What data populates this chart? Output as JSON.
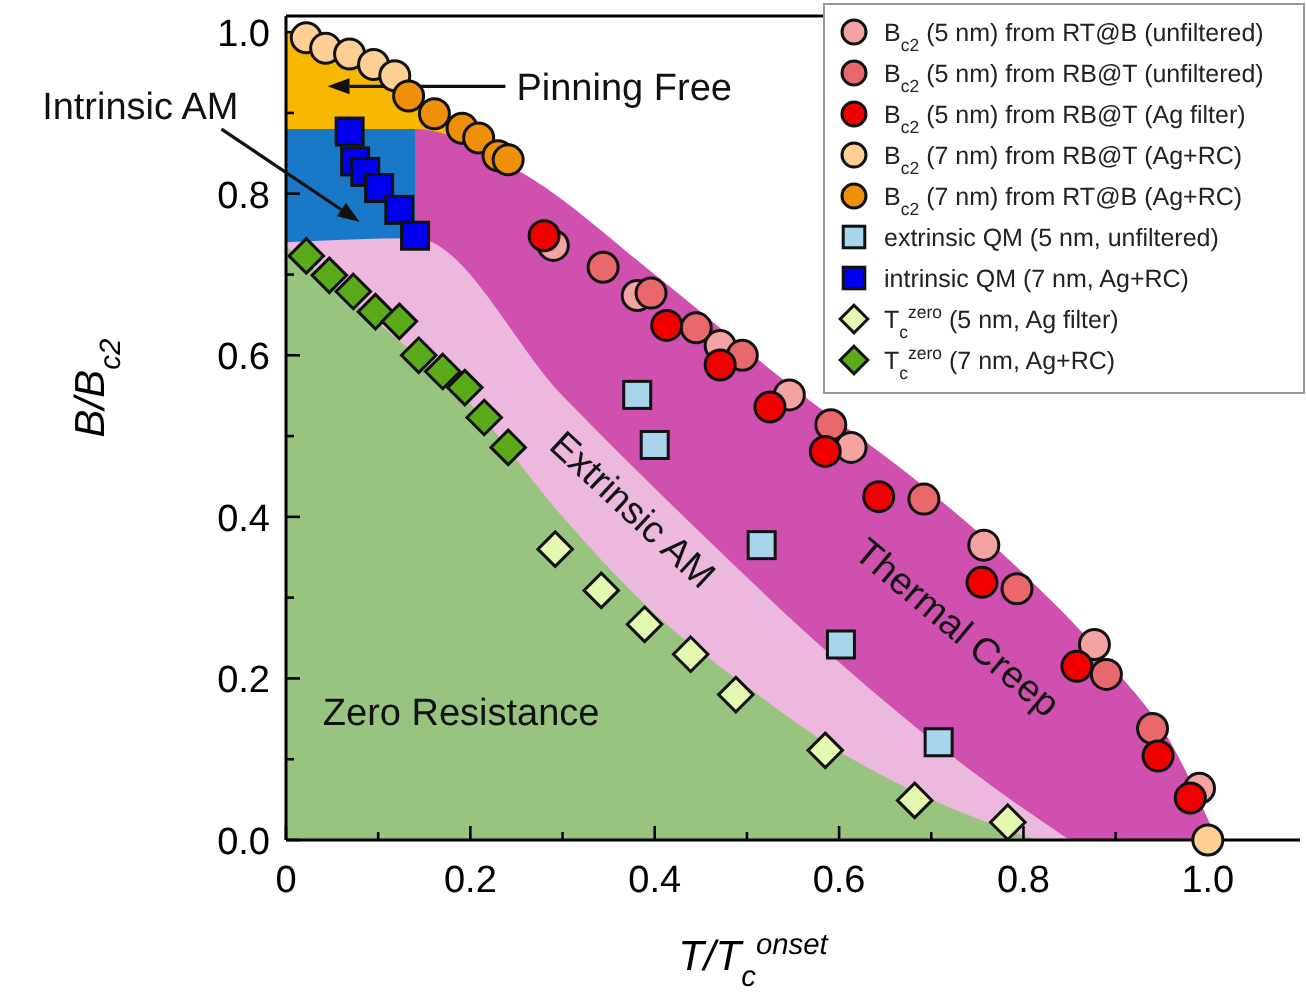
{
  "chart_data": {
    "type": "scatter",
    "xlabel": "T/T$_{c}$$^{onset}$",
    "ylabel": "B/B$_{c2}$",
    "xlim": [
      0,
      1.1
    ],
    "ylim": [
      0,
      1.02
    ],
    "xticks": [
      0,
      {
        "value": 0.1,
        "label": null
      },
      {
        "value": 0.2,
        "label": "0.2"
      },
      {
        "value": 0.3,
        "label": null
      },
      {
        "value": 0.4,
        "label": "0.4"
      },
      {
        "value": 0.5,
        "label": null
      },
      {
        "value": 0.6,
        "label": "0.6"
      },
      {
        "value": 0.7,
        "label": null
      },
      {
        "value": 0.8,
        "label": "0.8"
      },
      {
        "value": 0.9,
        "label": null
      },
      {
        "value": 1.0,
        "label": "1.0"
      }
    ],
    "yticks": [
      {
        "value": 0,
        "label": "0.0"
      },
      {
        "value": 0.1,
        "label": null
      },
      {
        "value": 0.2,
        "label": "0.2"
      },
      {
        "value": 0.3,
        "label": null
      },
      {
        "value": 0.4,
        "label": "0.4"
      },
      {
        "value": 0.5,
        "label": null
      },
      {
        "value": 0.6,
        "label": "0.6"
      },
      {
        "value": 0.7,
        "label": null
      },
      {
        "value": 0.8,
        "label": "0.8"
      },
      {
        "value": 0.9,
        "label": null
      },
      {
        "value": 1.0,
        "label": "1.0"
      }
    ],
    "legend": "top right",
    "annotations": [
      "Pinning Free",
      "Intrinsic AM",
      "Extrinsic AM",
      "Thermal Creep",
      "Zero Resistance"
    ],
    "series": [
      {
        "type": "area",
        "color": "#f8b800",
        "x": [
          0,
          0.05,
          0.1,
          0.15,
          0.205
        ],
        "values": [
          1.0,
          0.98,
          0.955,
          0.915,
          0.88
        ]
      },
      {
        "type": "area",
        "color": "#d050b0",
        "x": [
          0,
          0.14,
          0.25,
          0.4,
          0.55,
          0.7,
          0.8,
          0.9,
          0.96,
          1.01
        ],
        "values": [
          0.88,
          0.88,
          0.83,
          0.7,
          0.56,
          0.43,
          0.33,
          0.21,
          0.12,
          0
        ]
      },
      {
        "type": "area",
        "color": "#1a78c8",
        "x": [
          0,
          0.14
        ],
        "values": [
          0.88,
          0.88
        ]
      },
      {
        "type": "area",
        "color": "#ecb8de",
        "x": [
          0,
          0.14,
          0.3,
          0.45,
          0.6,
          0.75,
          0.85
        ],
        "values": [
          0.74,
          0.745,
          0.55,
          0.38,
          0.22,
          0.08,
          0
        ]
      },
      {
        "type": "area",
        "color": "#98c480",
        "x": [
          0,
          0.1,
          0.2,
          0.3,
          0.4,
          0.5,
          0.6,
          0.7,
          0.815
        ],
        "values": [
          0.735,
          0.64,
          0.54,
          0.4,
          0.28,
          0.19,
          0.11,
          0.05,
          0
        ]
      },
      {
        "name": "B$_{c2}$ (5 nm) from RT@B (unfiltered)",
        "color": "#f4a3a3",
        "marker": "circle",
        "x": [
          0.29,
          0.381,
          0.471,
          0.546,
          0.613,
          0.757,
          0.877,
          0.991
        ],
        "values": [
          0.736,
          0.674,
          0.612,
          0.551,
          0.486,
          0.365,
          0.242,
          0.064
        ]
      },
      {
        "name": "B$_{c2}$ (5 nm) from RB@T (unfiltered)",
        "color": "#e8686c",
        "marker": "circle",
        "x": [
          0.344,
          0.396,
          0.445,
          0.495,
          0.591,
          0.692,
          0.793,
          0.89,
          0.94
        ],
        "values": [
          0.709,
          0.677,
          0.634,
          0.6,
          0.514,
          0.422,
          0.311,
          0.205,
          0.138
        ]
      },
      {
        "name": "B$_{c2}$ (5 nm) from RB@T (Ag filter)",
        "color": "#f00000",
        "marker": "circle",
        "x": [
          0.28,
          0.413,
          0.471,
          0.525,
          0.585,
          0.643,
          0.755,
          0.858,
          0.946,
          0.981
        ],
        "values": [
          0.748,
          0.637,
          0.588,
          0.536,
          0.481,
          0.425,
          0.319,
          0.215,
          0.104,
          0.052
        ]
      },
      {
        "name": "B$_{c2}$ (7 nm) from RB@T (Ag+RC)",
        "color": "#fdcf94",
        "marker": "circle",
        "x": [
          0.022,
          0.043,
          0.069,
          0.095,
          0.118,
          1.0
        ],
        "values": [
          0.993,
          0.98,
          0.973,
          0.96,
          0.946,
          0
        ]
      },
      {
        "name": "B$_{c2}$ (7 nm) from RT@B (Ag+RC)",
        "color": "#f0900a",
        "marker": "circle",
        "x": [
          0.133,
          0.161,
          0.191,
          0.209,
          0.23,
          0.241
        ],
        "values": [
          0.921,
          0.899,
          0.881,
          0.869,
          0.847,
          0.842
        ]
      },
      {
        "name": "extrinsic QM (5 nm, unfiltered)",
        "color": "#a8d4ec",
        "marker": "square",
        "x": [
          0.381,
          0.4,
          0.516,
          0.602,
          0.708
        ],
        "values": [
          0.551,
          0.489,
          0.365,
          0.242,
          0.121
        ]
      },
      {
        "name": "intrinsic QM (7 nm, Ag+RC)",
        "color": "#0000ee",
        "marker": "square",
        "x": [
          0.069,
          0.075,
          0.086,
          0.101,
          0.123,
          0.14
        ],
        "values": [
          0.877,
          0.84,
          0.827,
          0.807,
          0.78,
          0.748
        ]
      },
      {
        "name": "T$_{c}$$^{zero}$ (5 nm, Ag filter)",
        "color": "#e4f8b0",
        "marker": "diamond",
        "x": [
          0.292,
          0.342,
          0.389,
          0.439,
          0.488,
          0.585,
          0.682,
          0.783
        ],
        "values": [
          0.36,
          0.309,
          0.267,
          0.23,
          0.18,
          0.111,
          0.049,
          0.022
        ]
      },
      {
        "name": "T$_{c}$$^{zero}$ (7 nm, Ag+RC)",
        "color": "#5aaa1a",
        "marker": "diamond",
        "x": [
          0.022,
          0.047,
          0.073,
          0.097,
          0.123,
          0.144,
          0.17,
          0.194,
          0.215,
          0.241
        ],
        "values": [
          0.723,
          0.699,
          0.679,
          0.654,
          0.642,
          0.6,
          0.58,
          0.56,
          0.523,
          0.486
        ]
      }
    ]
  }
}
